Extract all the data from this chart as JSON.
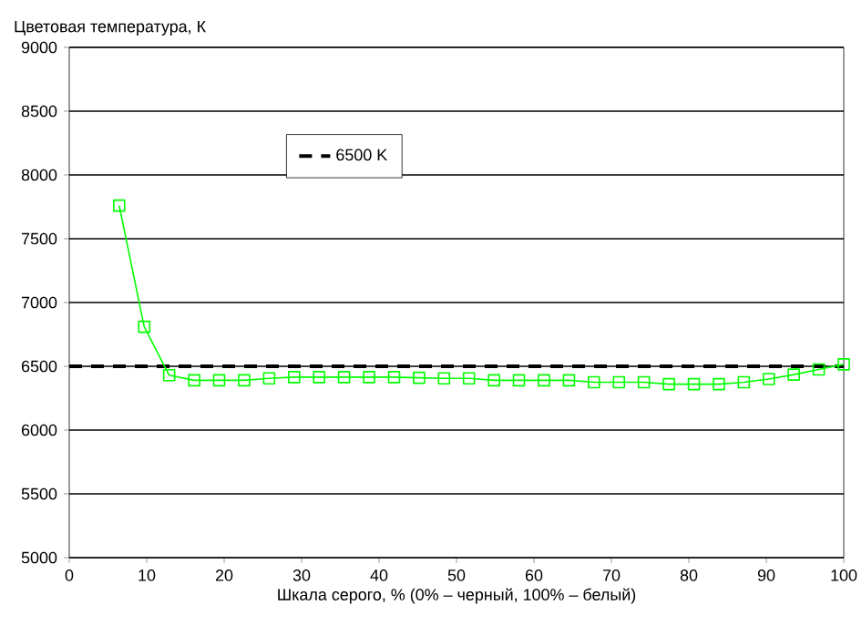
{
  "chart_data": {
    "type": "line",
    "xlabel": "Шкала серого, % (0% – черный, 100% – белый)",
    "ylabel": "Цветовая температура, К",
    "x": [
      6.45,
      9.68,
      12.9,
      16.13,
      19.35,
      22.58,
      25.81,
      29.03,
      32.26,
      35.48,
      38.71,
      41.94,
      45.16,
      48.39,
      51.61,
      54.84,
      58.06,
      61.29,
      64.52,
      67.74,
      70.97,
      74.19,
      77.42,
      80.65,
      83.87,
      87.1,
      90.32,
      93.55,
      96.77,
      100
    ],
    "series": [
      {
        "color": "#00ff00",
        "values": [
          7760,
          6810,
          6430,
          6390,
          6390,
          6390,
          6405,
          6415,
          6415,
          6415,
          6415,
          6415,
          6410,
          6405,
          6405,
          6390,
          6390,
          6390,
          6390,
          6375,
          6375,
          6375,
          6360,
          6360,
          6360,
          6375,
          6400,
          6435,
          6475,
          6515
        ]
      }
    ],
    "ref_lines": [
      {
        "axis": "y",
        "value": 6500,
        "label": "6500 K",
        "color": "#000000",
        "line_style": "dashed"
      }
    ],
    "xlim": [
      0,
      100
    ],
    "ylim": [
      5000,
      9000
    ],
    "xticks": [
      0,
      10,
      20,
      30,
      40,
      50,
      60,
      70,
      80,
      90,
      100
    ],
    "yticks": [
      5000,
      5500,
      6000,
      6500,
      7000,
      7500,
      8000,
      8500,
      9000
    ],
    "grid": "y",
    "legend": "top",
    "marker": "square",
    "line_style": "solid"
  }
}
